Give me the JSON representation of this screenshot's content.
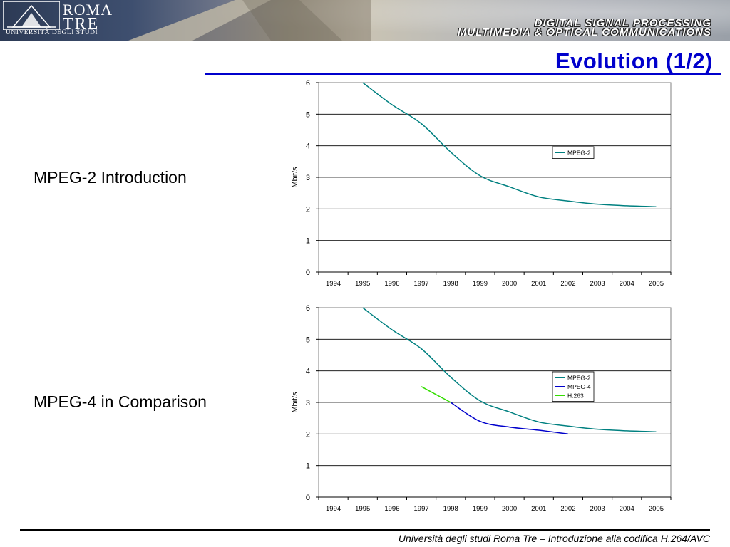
{
  "header": {
    "logo_roma": "ROMA",
    "logo_tre": "TRE",
    "logo_university": "UNIVERSITÀ DEGLI STUDI",
    "tagline_line1": "DIGITAL SIGNAL PROCESSING",
    "tagline_line2": "MULTIMEDIA & OPTICAL COMMUNICATIONS"
  },
  "slide": {
    "title": "Evolution (1/2)",
    "items": [
      "MPEG-2 Introduction",
      "MPEG-4 in Comparison"
    ]
  },
  "footer": {
    "text": "Università degli studi Roma Tre – Introduzione alla codifica H.264/AVC"
  },
  "colors": {
    "title": "#0000cc",
    "mpeg2": "#008080",
    "mpeg4": "#0000cc",
    "h263": "#33dd00"
  },
  "chart_data": [
    {
      "type": "line",
      "ylabel": "Mbit/s",
      "xlabel": "",
      "categories": [
        "1994",
        "1995",
        "1996",
        "1997",
        "1998",
        "1999",
        "2000",
        "2001",
        "2002",
        "2003",
        "2004",
        "2005"
      ],
      "ylim": [
        0,
        6
      ],
      "yticks": [
        0,
        1,
        2,
        3,
        4,
        5,
        6
      ],
      "grid": true,
      "legend": "right",
      "series": [
        {
          "name": "MPEG-2",
          "color": "#008080",
          "points": [
            [
              1995,
              6
            ],
            [
              1996,
              5.3
            ],
            [
              1997,
              4.7
            ],
            [
              1998,
              3.8
            ],
            [
              1999,
              3.05
            ],
            [
              2000,
              2.7
            ],
            [
              2001,
              2.38
            ],
            [
              2002,
              2.25
            ],
            [
              2003,
              2.15
            ],
            [
              2004,
              2.1
            ],
            [
              2005,
              2.07
            ]
          ]
        }
      ]
    },
    {
      "type": "line",
      "ylabel": "Mbit/s",
      "xlabel": "",
      "categories": [
        "1994",
        "1995",
        "1996",
        "1997",
        "1998",
        "1999",
        "2000",
        "2001",
        "2002",
        "2003",
        "2004",
        "2005"
      ],
      "ylim": [
        0,
        6
      ],
      "yticks": [
        0,
        1,
        2,
        3,
        4,
        5,
        6
      ],
      "grid": true,
      "legend": "right",
      "series": [
        {
          "name": "MPEG-2",
          "color": "#008080",
          "points": [
            [
              1995,
              6
            ],
            [
              1996,
              5.3
            ],
            [
              1997,
              4.7
            ],
            [
              1998,
              3.8
            ],
            [
              1999,
              3.05
            ],
            [
              2000,
              2.7
            ],
            [
              2001,
              2.38
            ],
            [
              2002,
              2.25
            ],
            [
              2003,
              2.15
            ],
            [
              2004,
              2.1
            ],
            [
              2005,
              2.07
            ]
          ]
        },
        {
          "name": "MPEG-4",
          "color": "#0000cc",
          "points": [
            [
              1998,
              3.0
            ],
            [
              1999,
              2.4
            ],
            [
              2000,
              2.22
            ],
            [
              2001,
              2.12
            ],
            [
              2002,
              2.0
            ]
          ]
        },
        {
          "name": "H.263",
          "color": "#33dd00",
          "points": [
            [
              1997,
              3.5
            ],
            [
              1998,
              3.0
            ]
          ]
        }
      ]
    }
  ]
}
